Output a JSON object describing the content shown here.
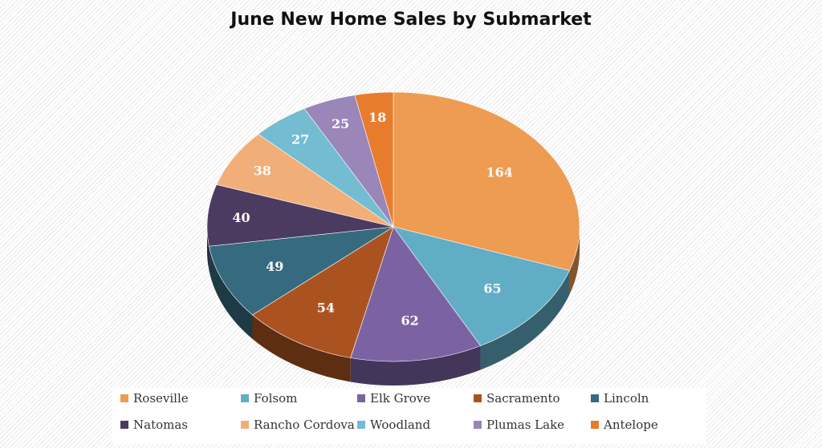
{
  "chart_data": {
    "type": "pie",
    "title": "June New Home Sales by Submarket",
    "categories": [
      "Roseville",
      "Folsom",
      "Elk Grove",
      "Sacramento",
      "Lincoln",
      "Natomas",
      "Rancho Cordova",
      "Woodland",
      "Plumas Lake",
      "Antelope"
    ],
    "values": [
      164,
      65,
      62,
      54,
      49,
      40,
      38,
      27,
      25,
      18
    ],
    "colors": [
      "#EE9C52",
      "#62ADC6",
      "#7B63A3",
      "#AB5320",
      "#366A7E",
      "#4B3B61",
      "#F2AE78",
      "#73BCD2",
      "#9A86B8",
      "#E87C2D"
    ],
    "data_labels": [
      "164",
      "65",
      "62",
      "54",
      "49",
      "40",
      "38",
      "27",
      "25",
      "18"
    ],
    "legend_position": "bottom",
    "style": "3d"
  }
}
